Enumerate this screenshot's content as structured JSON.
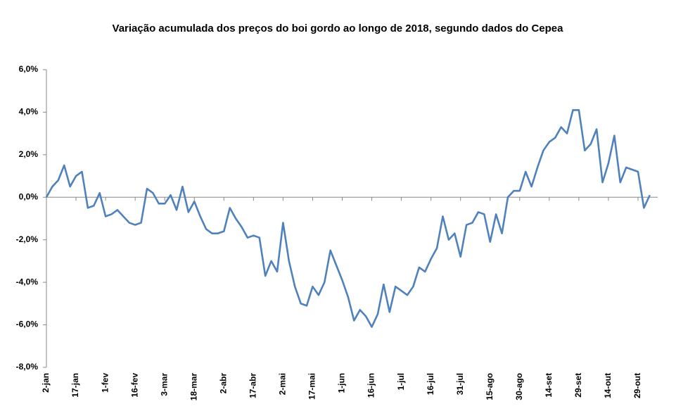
{
  "chart_data": {
    "type": "line",
    "title": "Variação acumulada dos preços do boi gordo ao longo de 2018, segundo dados do Cepea",
    "categories": [
      "2-jan",
      null,
      null,
      null,
      null,
      "17-jan",
      null,
      null,
      null,
      null,
      "1-fev",
      null,
      null,
      null,
      null,
      "16-fev",
      null,
      null,
      null,
      null,
      "3-mar",
      null,
      null,
      null,
      null,
      "18-mar",
      null,
      null,
      null,
      null,
      "2-abr",
      null,
      null,
      null,
      null,
      "17-abr",
      null,
      null,
      null,
      null,
      "2-mai",
      null,
      null,
      null,
      null,
      "17-mai",
      null,
      null,
      null,
      null,
      "1-jun",
      null,
      null,
      null,
      null,
      "16-jun",
      null,
      null,
      null,
      null,
      "1-jul",
      null,
      null,
      null,
      null,
      "16-jul",
      null,
      null,
      null,
      null,
      "31-jul",
      null,
      null,
      null,
      null,
      "15-ago",
      null,
      null,
      null,
      null,
      "30-ago",
      null,
      null,
      null,
      null,
      "14-set",
      null,
      null,
      null,
      null,
      "29-set",
      null,
      null,
      null,
      null,
      "14-out",
      null,
      null,
      null,
      null,
      "29-out",
      null,
      null
    ],
    "values": [
      0.0,
      0.5,
      0.8,
      1.5,
      0.5,
      1.0,
      1.2,
      -0.5,
      -0.4,
      0.2,
      -0.9,
      -0.8,
      -0.6,
      -0.9,
      -1.2,
      -1.3,
      -1.2,
      0.4,
      0.2,
      -0.3,
      -0.3,
      0.1,
      -0.6,
      0.5,
      -0.7,
      -0.2,
      -0.9,
      -1.5,
      -1.7,
      -1.7,
      -1.6,
      -0.5,
      -1.0,
      -1.4,
      -1.9,
      -1.8,
      -1.9,
      -3.7,
      -3.0,
      -3.5,
      -1.2,
      -3.0,
      -4.2,
      -5.0,
      -5.1,
      -4.2,
      -4.6,
      -4.0,
      -2.5,
      -3.2,
      -3.9,
      -4.7,
      -5.8,
      -5.3,
      -5.6,
      -6.1,
      -5.5,
      -4.1,
      -5.4,
      -4.2,
      -4.4,
      -4.6,
      -4.2,
      -3.3,
      -3.5,
      -2.9,
      -2.4,
      -0.9,
      -2.0,
      -1.7,
      -2.8,
      -1.3,
      -1.2,
      -0.7,
      -0.8,
      -2.1,
      -0.8,
      -1.7,
      0.0,
      0.3,
      0.3,
      1.2,
      0.5,
      1.4,
      2.2,
      2.6,
      2.8,
      3.3,
      3.0,
      4.1,
      4.1,
      2.2,
      2.5,
      3.2,
      0.7,
      1.6,
      2.9,
      0.7,
      1.4,
      1.3,
      1.2,
      -0.5,
      0.1
    ],
    "color": "#4f81bd",
    "ylim": [
      -8,
      6
    ],
    "yticks": [
      {
        "value": -8,
        "label": "-8,0%"
      },
      {
        "value": -6,
        "label": "-6,0%"
      },
      {
        "value": -4,
        "label": "-4,0%"
      },
      {
        "value": -2,
        "label": "-2,0%"
      },
      {
        "value": 0,
        "label": "0,0%"
      },
      {
        "value": 2,
        "label": "2,0%"
      },
      {
        "value": 4,
        "label": "4,0%"
      },
      {
        "value": 6,
        "label": "6,0%"
      }
    ]
  }
}
